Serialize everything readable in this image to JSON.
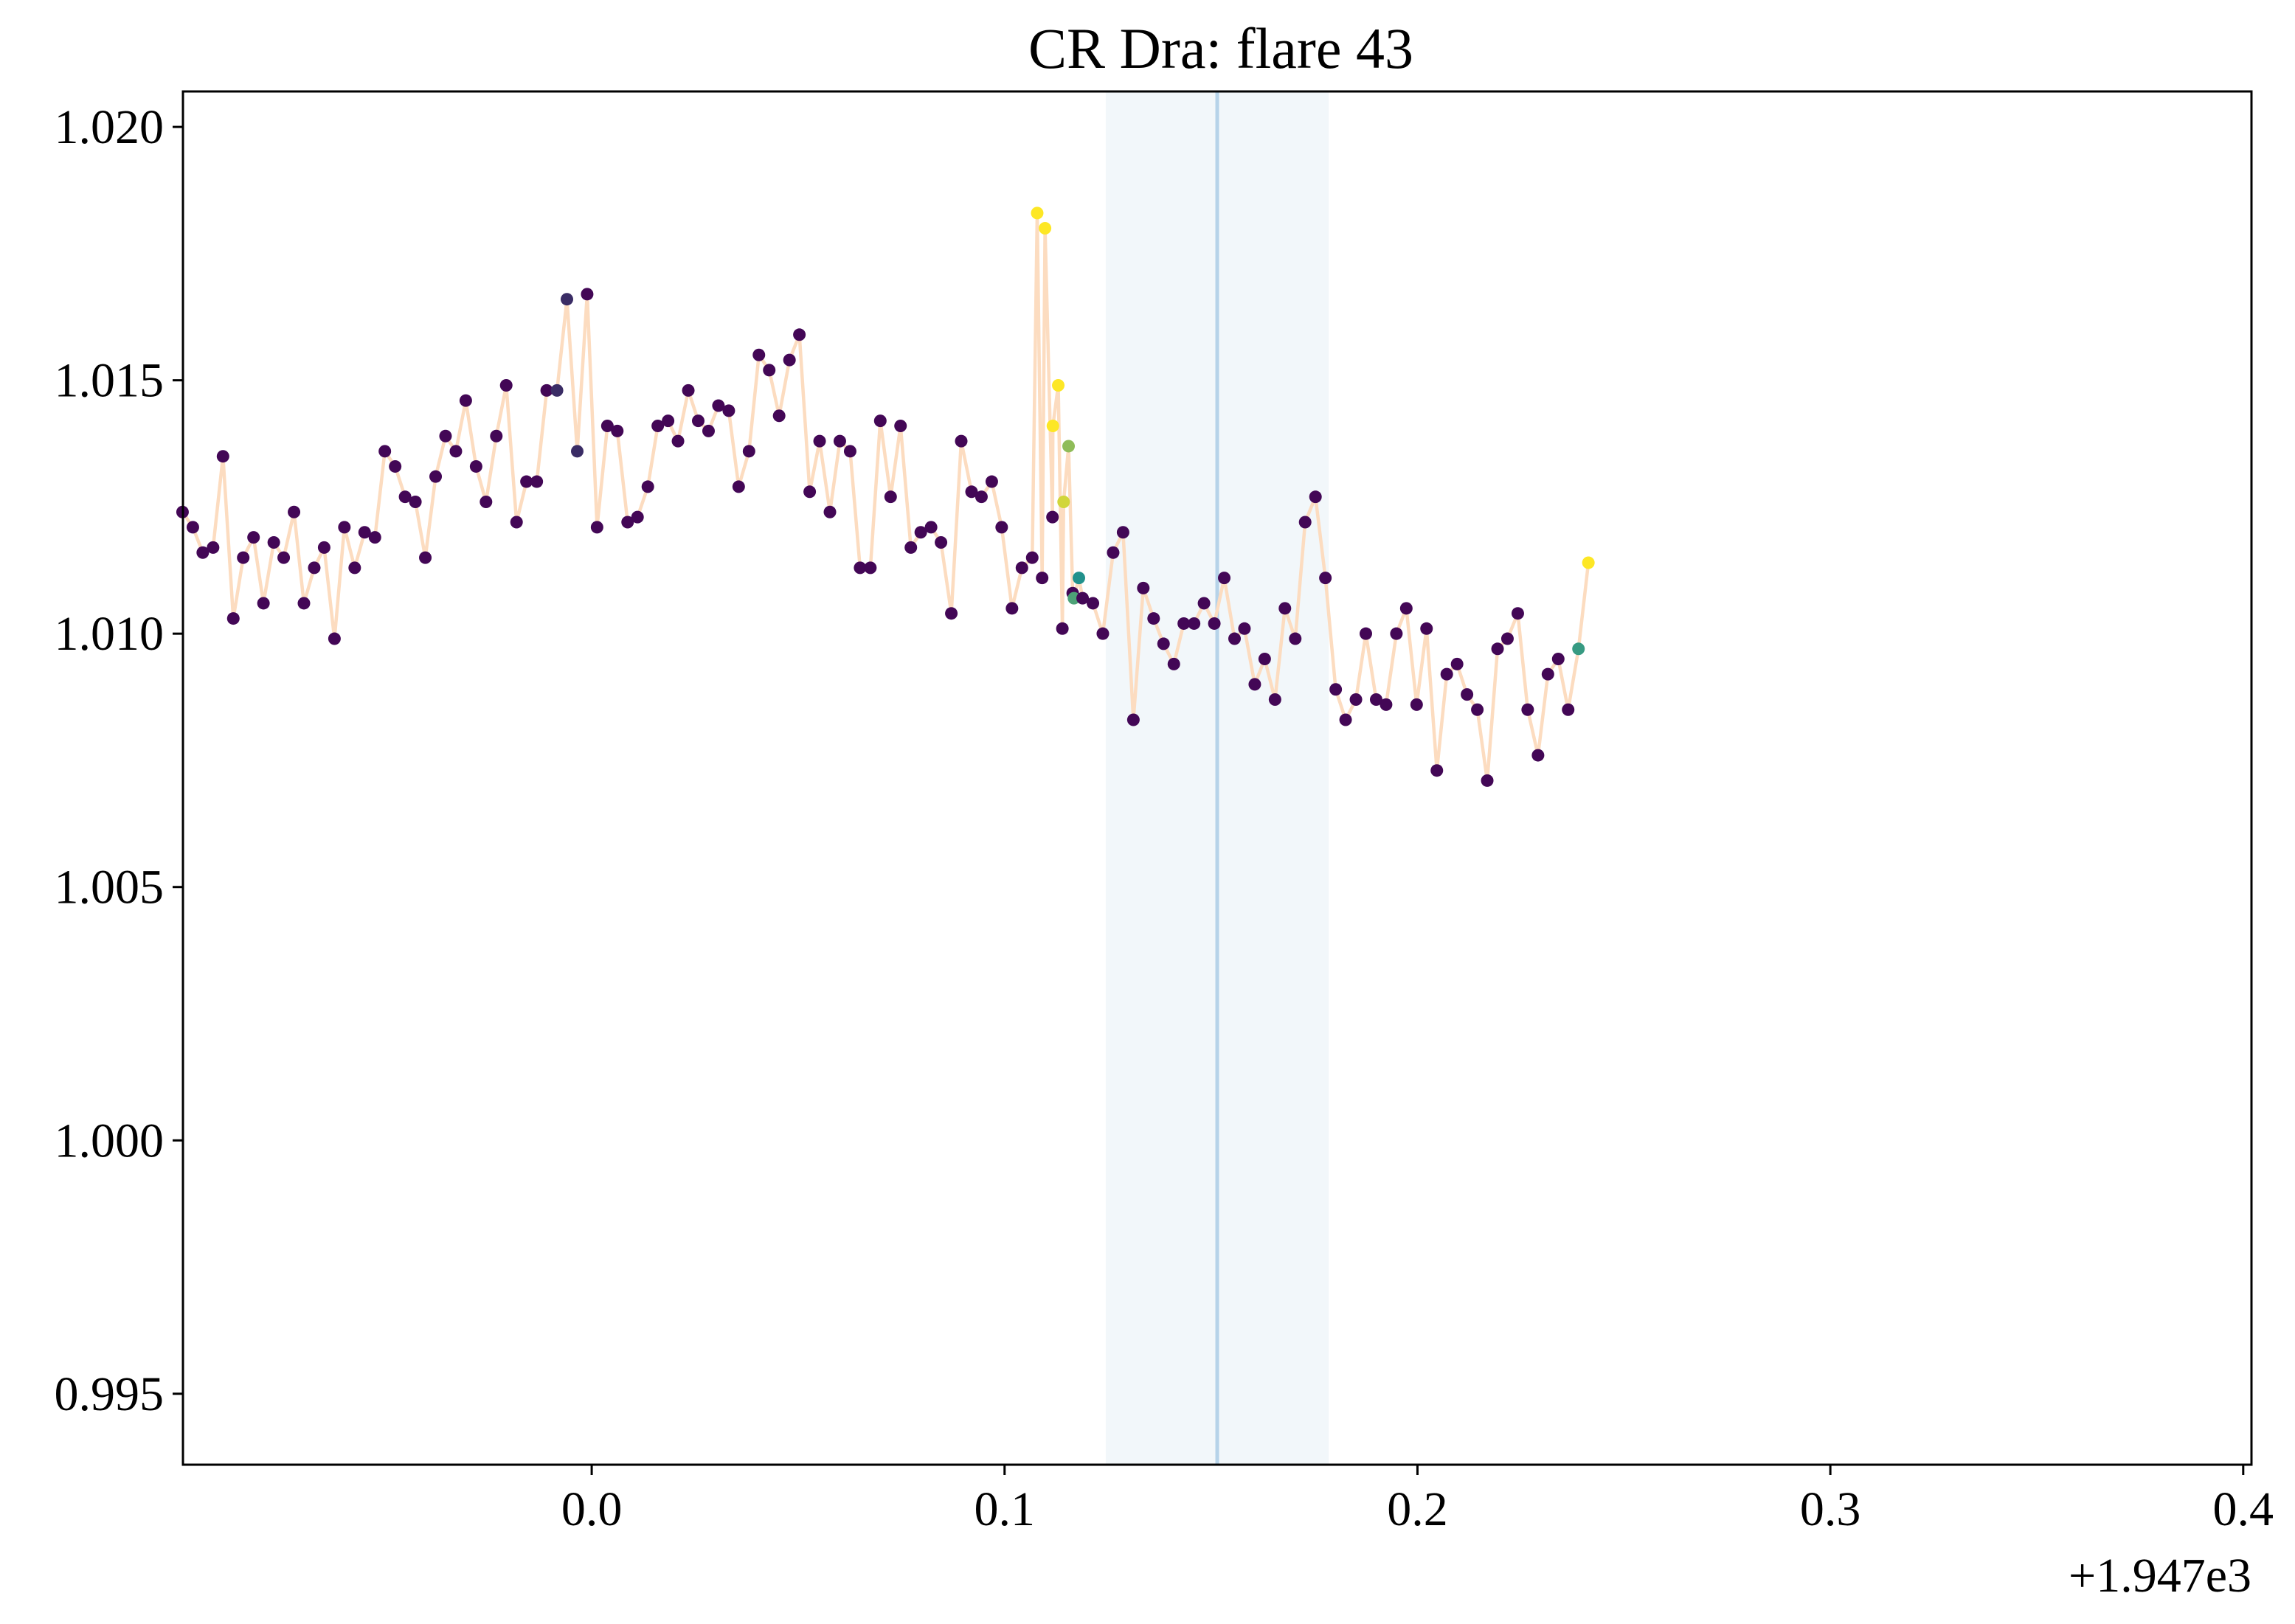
{
  "chart_data": {
    "type": "scatter",
    "title": "CR Dra: flare 43",
    "xlabel": "",
    "ylabel": "",
    "x_offset_label": "+1.947e3",
    "xlim": [
      -0.099,
      0.402
    ],
    "ylim": [
      0.9936,
      1.0207
    ],
    "x_ticks": [
      0.0,
      0.1,
      0.2,
      0.3,
      0.4
    ],
    "x_tick_labels": [
      "0.0",
      "0.1",
      "0.2",
      "0.3",
      "0.4"
    ],
    "y_ticks": [
      0.995,
      1.0,
      1.005,
      1.01,
      1.015,
      1.02
    ],
    "y_tick_labels": [
      "0.995",
      "1.000",
      "1.005",
      "1.010",
      "1.015",
      "1.020"
    ],
    "grid": false,
    "legend": "none",
    "highlight_span": {
      "x": [
        0.1245,
        0.1785
      ],
      "color": "#f2f7fa"
    },
    "peak_line": {
      "x": 0.1515,
      "color": "#b6d3e9"
    },
    "line_color": "#fcdcc0",
    "colors": {
      "low": "#440154",
      "mid": "#21918c",
      "high": "#fde725"
    },
    "points": [
      {
        "x": -0.0991,
        "y": 1.0124,
        "c": 0.02
      },
      {
        "x": -0.0966,
        "y": 1.0121,
        "c": 0.02
      },
      {
        "x": -0.0942,
        "y": 1.0116,
        "c": 0.02
      },
      {
        "x": -0.0917,
        "y": 1.0117,
        "c": 0.02
      },
      {
        "x": -0.0893,
        "y": 1.0135,
        "c": 0.02
      },
      {
        "x": -0.0868,
        "y": 1.0103,
        "c": 0.02
      },
      {
        "x": -0.0844,
        "y": 1.0115,
        "c": 0.02
      },
      {
        "x": -0.0819,
        "y": 1.0119,
        "c": 0.02
      },
      {
        "x": -0.0795,
        "y": 1.0106,
        "c": 0.02
      },
      {
        "x": -0.077,
        "y": 1.0118,
        "c": 0.02
      },
      {
        "x": -0.0746,
        "y": 1.0115,
        "c": 0.02
      },
      {
        "x": -0.0721,
        "y": 1.0124,
        "c": 0.02
      },
      {
        "x": -0.0697,
        "y": 1.0106,
        "c": 0.02
      },
      {
        "x": -0.0672,
        "y": 1.0113,
        "c": 0.02
      },
      {
        "x": -0.0648,
        "y": 1.0117,
        "c": 0.02
      },
      {
        "x": -0.0623,
        "y": 1.0099,
        "c": 0.02
      },
      {
        "x": -0.0599,
        "y": 1.0121,
        "c": 0.02
      },
      {
        "x": -0.0574,
        "y": 1.0113,
        "c": 0.02
      },
      {
        "x": -0.055,
        "y": 1.012,
        "c": 0.02
      },
      {
        "x": -0.0525,
        "y": 1.0119,
        "c": 0.02
      },
      {
        "x": -0.0501,
        "y": 1.0136,
        "c": 0.02
      },
      {
        "x": -0.0476,
        "y": 1.0133,
        "c": 0.02
      },
      {
        "x": -0.0452,
        "y": 1.0127,
        "c": 0.02
      },
      {
        "x": -0.0427,
        "y": 1.0126,
        "c": 0.02
      },
      {
        "x": -0.0403,
        "y": 1.0115,
        "c": 0.02
      },
      {
        "x": -0.0378,
        "y": 1.0131,
        "c": 0.02
      },
      {
        "x": -0.0354,
        "y": 1.0139,
        "c": 0.02
      },
      {
        "x": -0.0329,
        "y": 1.0136,
        "c": 0.02
      },
      {
        "x": -0.0305,
        "y": 1.0146,
        "c": 0.02
      },
      {
        "x": -0.028,
        "y": 1.0133,
        "c": 0.02
      },
      {
        "x": -0.0256,
        "y": 1.0126,
        "c": 0.02
      },
      {
        "x": -0.0231,
        "y": 1.0139,
        "c": 0.02
      },
      {
        "x": -0.0207,
        "y": 1.0149,
        "c": 0.02
      },
      {
        "x": -0.0182,
        "y": 1.0122,
        "c": 0.02
      },
      {
        "x": -0.0158,
        "y": 1.013,
        "c": 0.02
      },
      {
        "x": -0.0133,
        "y": 1.013,
        "c": 0.02
      },
      {
        "x": -0.0109,
        "y": 1.0148,
        "c": 0.02
      },
      {
        "x": -0.0084,
        "y": 1.0148,
        "c": 0.15
      },
      {
        "x": -0.006,
        "y": 1.0166,
        "c": 0.15
      },
      {
        "x": -0.0035,
        "y": 1.0136,
        "c": 0.15
      },
      {
        "x": -0.0011,
        "y": 1.0167,
        "c": 0.02
      },
      {
        "x": 0.0013,
        "y": 1.0121,
        "c": 0.02
      },
      {
        "x": 0.0038,
        "y": 1.0141,
        "c": 0.02
      },
      {
        "x": 0.0062,
        "y": 1.014,
        "c": 0.02
      },
      {
        "x": 0.0087,
        "y": 1.0122,
        "c": 0.02
      },
      {
        "x": 0.0111,
        "y": 1.0123,
        "c": 0.02
      },
      {
        "x": 0.0136,
        "y": 1.0129,
        "c": 0.02
      },
      {
        "x": 0.016,
        "y": 1.0141,
        "c": 0.02
      },
      {
        "x": 0.0185,
        "y": 1.0142,
        "c": 0.02
      },
      {
        "x": 0.0209,
        "y": 1.0138,
        "c": 0.02
      },
      {
        "x": 0.0234,
        "y": 1.0148,
        "c": 0.02
      },
      {
        "x": 0.0258,
        "y": 1.0142,
        "c": 0.02
      },
      {
        "x": 0.0283,
        "y": 1.014,
        "c": 0.02
      },
      {
        "x": 0.0307,
        "y": 1.0145,
        "c": 0.02
      },
      {
        "x": 0.0332,
        "y": 1.0144,
        "c": 0.02
      },
      {
        "x": 0.0356,
        "y": 1.0129,
        "c": 0.02
      },
      {
        "x": 0.0381,
        "y": 1.0136,
        "c": 0.02
      },
      {
        "x": 0.0405,
        "y": 1.0155,
        "c": 0.02
      },
      {
        "x": 0.043,
        "y": 1.0152,
        "c": 0.02
      },
      {
        "x": 0.0454,
        "y": 1.0143,
        "c": 0.02
      },
      {
        "x": 0.0479,
        "y": 1.0154,
        "c": 0.02
      },
      {
        "x": 0.0503,
        "y": 1.0159,
        "c": 0.02
      },
      {
        "x": 0.0528,
        "y": 1.0128,
        "c": 0.02
      },
      {
        "x": 0.0552,
        "y": 1.0138,
        "c": 0.02
      },
      {
        "x": 0.0577,
        "y": 1.0124,
        "c": 0.02
      },
      {
        "x": 0.0601,
        "y": 1.0138,
        "c": 0.02
      },
      {
        "x": 0.0626,
        "y": 1.0136,
        "c": 0.02
      },
      {
        "x": 0.065,
        "y": 1.0113,
        "c": 0.02
      },
      {
        "x": 0.0675,
        "y": 1.0113,
        "c": 0.02
      },
      {
        "x": 0.0699,
        "y": 1.0142,
        "c": 0.02
      },
      {
        "x": 0.0724,
        "y": 1.0127,
        "c": 0.02
      },
      {
        "x": 0.0748,
        "y": 1.0141,
        "c": 0.02
      },
      {
        "x": 0.0773,
        "y": 1.0117,
        "c": 0.02
      },
      {
        "x": 0.0797,
        "y": 1.012,
        "c": 0.02
      },
      {
        "x": 0.0822,
        "y": 1.0121,
        "c": 0.02
      },
      {
        "x": 0.0846,
        "y": 1.0118,
        "c": 0.02
      },
      {
        "x": 0.0871,
        "y": 1.0104,
        "c": 0.02
      },
      {
        "x": 0.0895,
        "y": 1.0138,
        "c": 0.02
      },
      {
        "x": 0.092,
        "y": 1.0128,
        "c": 0.02
      },
      {
        "x": 0.0944,
        "y": 1.0127,
        "c": 0.02
      },
      {
        "x": 0.0969,
        "y": 1.013,
        "c": 0.02
      },
      {
        "x": 0.0993,
        "y": 1.0121,
        "c": 0.02
      },
      {
        "x": 0.1018,
        "y": 1.0105,
        "c": 0.02
      },
      {
        "x": 0.1042,
        "y": 1.0113,
        "c": 0.02
      },
      {
        "x": 0.1067,
        "y": 1.0115,
        "c": 0.02
      },
      {
        "x": 0.1091,
        "y": 1.0111,
        "c": 0.02
      },
      {
        "x": 0.1116,
        "y": 1.0123,
        "c": 0.02
      },
      {
        "x": 0.114,
        "y": 1.0101,
        "c": 0.02
      },
      {
        "x": 0.1165,
        "y": 1.0108,
        "c": 0.02
      },
      {
        "x": 0.1189,
        "y": 1.0107,
        "c": 0.02
      },
      {
        "x": 0.1214,
        "y": 1.0106,
        "c": 0.02
      },
      {
        "x": 0.1238,
        "y": 1.01,
        "c": 0.02
      },
      {
        "x": 0.1263,
        "y": 1.0116,
        "c": 0.02
      },
      {
        "x": 0.1287,
        "y": 1.012,
        "c": 0.02
      },
      {
        "x": 0.1312,
        "y": 1.0083,
        "c": 0.02
      },
      {
        "x": 0.1336,
        "y": 1.0109,
        "c": 0.02
      },
      {
        "x": 0.1361,
        "y": 1.0103,
        "c": 0.02
      },
      {
        "x": 0.1385,
        "y": 1.0098,
        "c": 0.02
      },
      {
        "x": 0.141,
        "y": 1.0094,
        "c": 0.02
      },
      {
        "x": 0.1434,
        "y": 1.0102,
        "c": 0.02
      },
      {
        "x": 0.1459,
        "y": 1.0102,
        "c": 0.02
      },
      {
        "x": 0.1483,
        "y": 1.0106,
        "c": 0.02
      },
      {
        "x": 0.1508,
        "y": 1.0102,
        "c": 0.02
      },
      {
        "x": 0.1532,
        "y": 1.0111,
        "c": 0.02
      },
      {
        "x": 0.1557,
        "y": 1.0099,
        "c": 0.02
      },
      {
        "x": 0.1581,
        "y": 1.0101,
        "c": 0.02
      },
      {
        "x": 0.1606,
        "y": 1.009,
        "c": 0.02
      },
      {
        "x": 0.163,
        "y": 1.0095,
        "c": 0.02
      },
      {
        "x": 0.1655,
        "y": 1.0087,
        "c": 0.02
      },
      {
        "x": 0.1679,
        "y": 1.0105,
        "c": 0.02
      },
      {
        "x": 0.1704,
        "y": 1.0099,
        "c": 0.02
      },
      {
        "x": 0.1728,
        "y": 1.0122,
        "c": 0.02
      },
      {
        "x": 0.1753,
        "y": 1.0127,
        "c": 0.02
      },
      {
        "x": 0.1777,
        "y": 1.0111,
        "c": 0.02
      },
      {
        "x": 0.1802,
        "y": 1.0089,
        "c": 0.02
      },
      {
        "x": 0.1826,
        "y": 1.0083,
        "c": 0.02
      },
      {
        "x": 0.1851,
        "y": 1.0087,
        "c": 0.02
      },
      {
        "x": 0.1875,
        "y": 1.01,
        "c": 0.02
      },
      {
        "x": 0.19,
        "y": 1.0087,
        "c": 0.02
      },
      {
        "x": 0.1924,
        "y": 1.0086,
        "c": 0.02
      },
      {
        "x": 0.1949,
        "y": 1.01,
        "c": 0.02
      },
      {
        "x": 0.1973,
        "y": 1.0105,
        "c": 0.02
      },
      {
        "x": 0.1998,
        "y": 1.0086,
        "c": 0.02
      },
      {
        "x": 0.2022,
        "y": 1.0101,
        "c": 0.02
      },
      {
        "x": 0.2047,
        "y": 1.0073,
        "c": 0.02
      },
      {
        "x": 0.2071,
        "y": 1.0092,
        "c": 0.02
      },
      {
        "x": 0.2096,
        "y": 1.0094,
        "c": 0.02
      },
      {
        "x": 0.212,
        "y": 1.0088,
        "c": 0.02
      },
      {
        "x": 0.2145,
        "y": 1.0085,
        "c": 0.02
      },
      {
        "x": 0.2169,
        "y": 1.0071,
        "c": 0.02
      },
      {
        "x": 0.2194,
        "y": 1.0097,
        "c": 0.02
      },
      {
        "x": 0.2218,
        "y": 1.0099,
        "c": 0.02
      },
      {
        "x": 0.2243,
        "y": 1.0104,
        "c": 0.02
      },
      {
        "x": 0.2267,
        "y": 1.0085,
        "c": 0.02
      },
      {
        "x": 0.2292,
        "y": 1.0076,
        "c": 0.02
      },
      {
        "x": 0.2316,
        "y": 1.0092,
        "c": 0.02
      },
      {
        "x": 0.2341,
        "y": 1.0095,
        "c": 0.02
      },
      {
        "x": 0.2365,
        "y": 1.0085,
        "c": 0.02
      },
      {
        "x": 0.239,
        "y": 1.0097,
        "c": 0.55
      },
      {
        "x": 0.2414,
        "y": 1.0114,
        "c": 1.0
      },
      {
        "x": 0.1079,
        "y": 1.0183,
        "c": 1.0
      },
      {
        "x": 0.1098,
        "y": 1.018,
        "c": 1.0
      },
      {
        "x": 0.1117,
        "y": 1.0141,
        "c": 1.0
      },
      {
        "x": 0.113,
        "y": 1.0149,
        "c": 1.0
      },
      {
        "x": 0.1143,
        "y": 1.0126,
        "c": 0.9
      },
      {
        "x": 0.1155,
        "y": 1.0137,
        "c": 0.75
      },
      {
        "x": 0.1168,
        "y": 1.0107,
        "c": 0.6
      },
      {
        "x": 0.118,
        "y": 1.0111,
        "c": 0.5
      }
    ]
  }
}
